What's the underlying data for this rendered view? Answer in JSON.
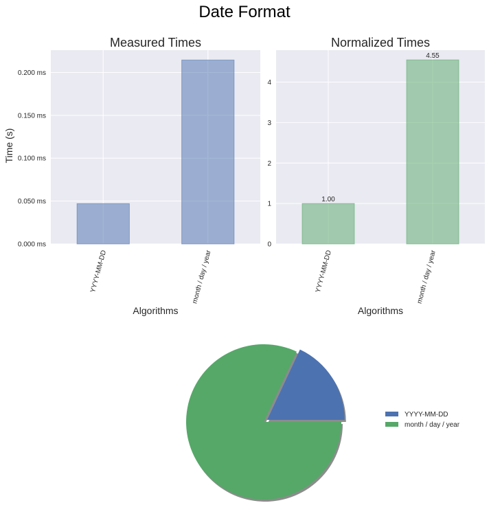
{
  "figure_title": "Date Format",
  "colors": {
    "background": "#ffffff",
    "axes_face": "#eaeaf2",
    "grid": "#ffffff",
    "text": "#262626",
    "tick_text": "#262626",
    "blue": "#4c72b0",
    "green": "#55a868",
    "shadow": "#8c8c8c"
  },
  "chart_data": [
    {
      "type": "bar",
      "title": "Measured Times",
      "xlabel": "Algorithms",
      "ylabel": "Time (s)",
      "categories": [
        "YYYY-MM-DD",
        "month / day / year"
      ],
      "values": [
        0.047,
        0.2145
      ],
      "ylim": [
        0,
        0.226
      ],
      "yticks": [
        0,
        0.05,
        0.1,
        0.15,
        0.2
      ],
      "yticklabels": [
        "0.000 ms",
        "0.050 ms",
        "0.100 ms",
        "0.150 ms",
        "0.200 ms"
      ],
      "bar_color": "#4c72b0",
      "bar_alpha": 0.5,
      "grid": true
    },
    {
      "type": "bar",
      "title": "Normalized Times",
      "xlabel": "Algorithms",
      "ylabel": "",
      "categories": [
        "YYYY-MM-DD",
        "month / day / year"
      ],
      "values": [
        1.0,
        4.55
      ],
      "data_labels": [
        "1.00",
        "4.55"
      ],
      "ylim": [
        0,
        4.79
      ],
      "yticks": [
        0,
        1,
        2,
        3,
        4
      ],
      "yticklabels": [
        "0",
        "1",
        "2",
        "3",
        "4"
      ],
      "bar_color": "#55a868",
      "bar_alpha": 0.5,
      "grid": true
    },
    {
      "type": "pie",
      "labels": [
        "YYYY-MM-DD",
        "month / day / year"
      ],
      "values": [
        1.0,
        4.55
      ],
      "colors": [
        "#4c72b0",
        "#55a868"
      ],
      "explode": [
        0.05,
        0
      ],
      "shadow": true,
      "legend": "right"
    }
  ]
}
